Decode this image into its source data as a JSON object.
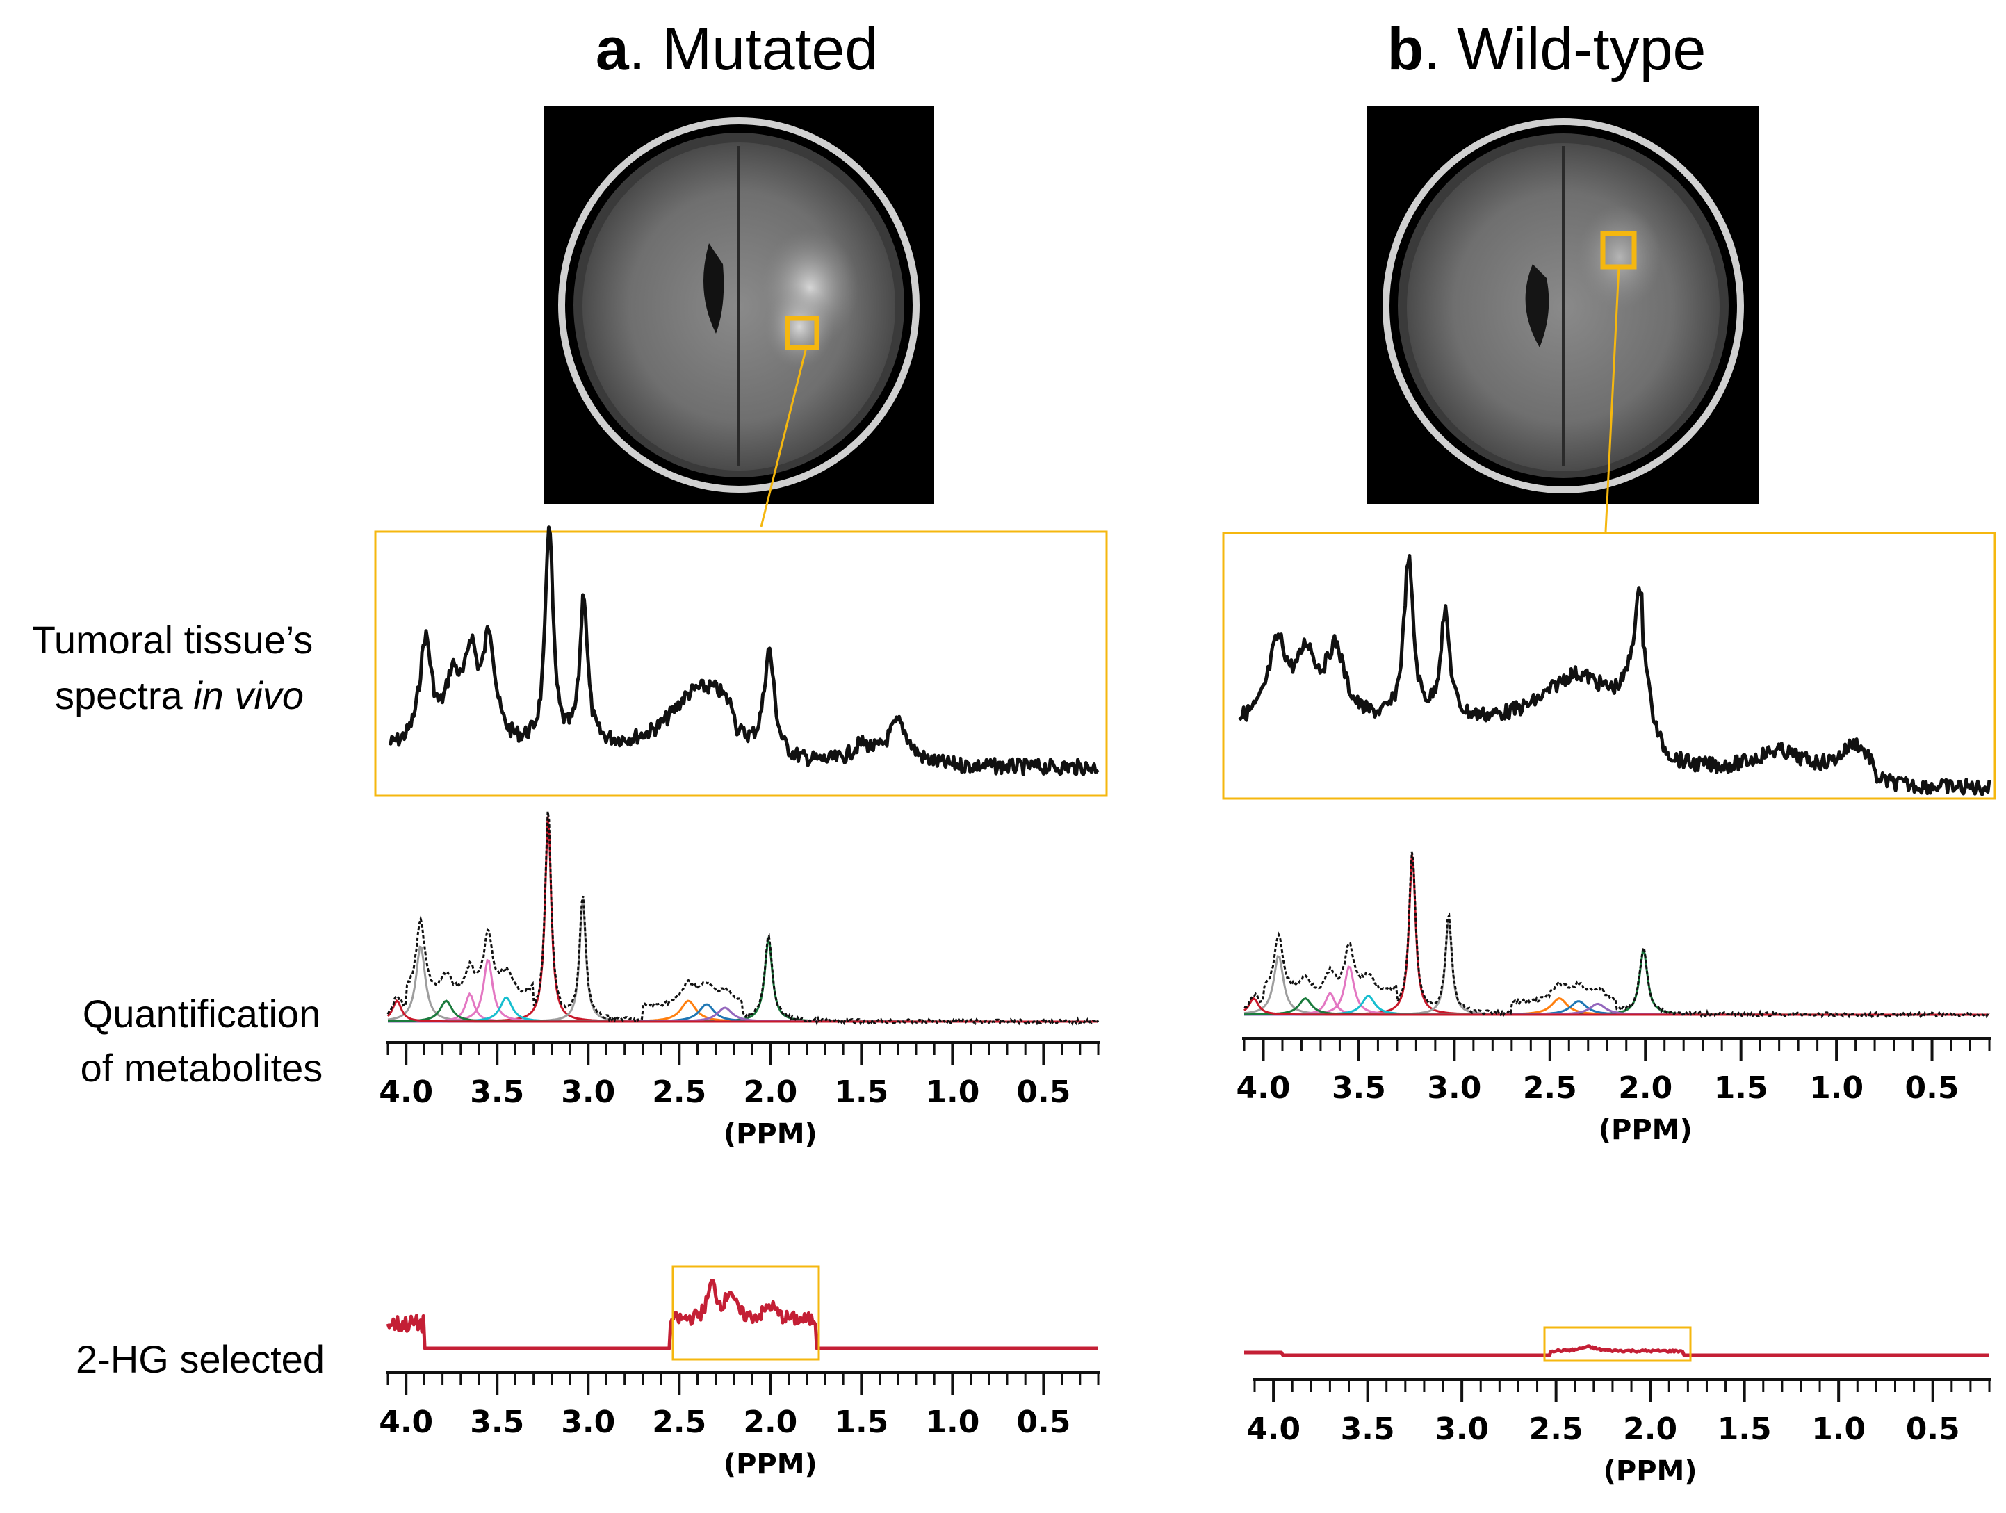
{
  "panels": {
    "a": {
      "letter": "a",
      "title": ". Mutated"
    },
    "b": {
      "letter": "b",
      "title": ". Wild-type"
    }
  },
  "row_labels": {
    "spectra_line1": "Tumoral tissue’s",
    "spectra_line2_prefix": "spectra ",
    "spectra_line2_italic": "in vivo",
    "quant_line1": "Quantification",
    "quant_line2": "of metabolites",
    "hg_label": "2-HG selected"
  },
  "axis": {
    "ticks": [
      "4.0",
      "3.5",
      "3.0",
      "2.5",
      "2.0",
      "1.5",
      "1.0",
      "0.5"
    ],
    "unit": "(PPM)"
  },
  "colors": {
    "highlight": "#f5b70f",
    "spectrum": "#111111",
    "hg_trace": "#c41f35",
    "metabolites": [
      "#c8192b",
      "#9e9e9e",
      "#1a7a3c",
      "#e377c2",
      "#17becf",
      "#ff7f0e",
      "#1f77b4",
      "#9467bd"
    ]
  }
}
